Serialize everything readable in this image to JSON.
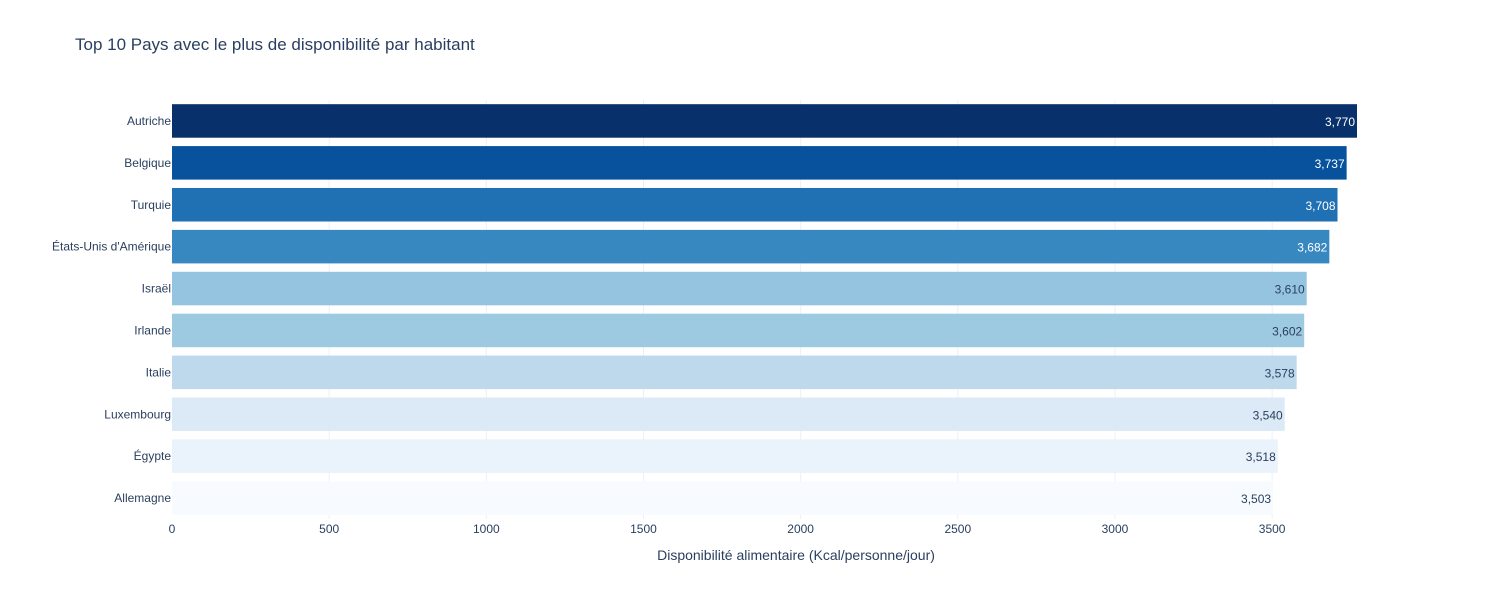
{
  "chart_data": {
    "type": "bar",
    "orientation": "horizontal",
    "title": "Top 10 Pays avec le plus de disponibilité par habitant",
    "xlabel": "Disponibilité alimentaire (Kcal/personne/jour)",
    "ylabel": "",
    "xlim": [
      0,
      3770
    ],
    "x_ticks": [
      "0",
      "500",
      "1000",
      "1500",
      "2000",
      "2500",
      "3000",
      "3500"
    ],
    "x_tick_values": [
      0,
      500,
      1000,
      1500,
      2000,
      2500,
      3000,
      3500
    ],
    "grid": true,
    "legend": "none",
    "colorscale": "Blues",
    "categories": [
      "Autriche",
      "Belgique",
      "Turquie",
      "États-Unis d'Amérique",
      "Israël",
      "Irlande",
      "Italie",
      "Luxembourg",
      "Égypte",
      "Allemagne"
    ],
    "values": [
      3770,
      3737,
      3708,
      3682,
      3610,
      3602,
      3578,
      3540,
      3518,
      3503
    ],
    "value_labels": [
      "3,770",
      "3,737",
      "3,708",
      "3,682",
      "3,610",
      "3,602",
      "3,578",
      "3,540",
      "3,518",
      "3,503"
    ],
    "bar_colors": [
      "#08306b",
      "#08519c",
      "#2070b4",
      "#3787c0",
      "#94c4df",
      "#9dcae1",
      "#bed8ec",
      "#dce9f6",
      "#eaf2fb",
      "#f7fbff"
    ],
    "label_colors": [
      "#ffffff",
      "#ffffff",
      "#ffffff",
      "#ffffff",
      "#2a3f5f",
      "#2a3f5f",
      "#2a3f5f",
      "#2a3f5f",
      "#2a3f5f",
      "#2a3f5f"
    ],
    "text_color": "#2a3f5f",
    "grid_color": "#ebf0f8"
  }
}
